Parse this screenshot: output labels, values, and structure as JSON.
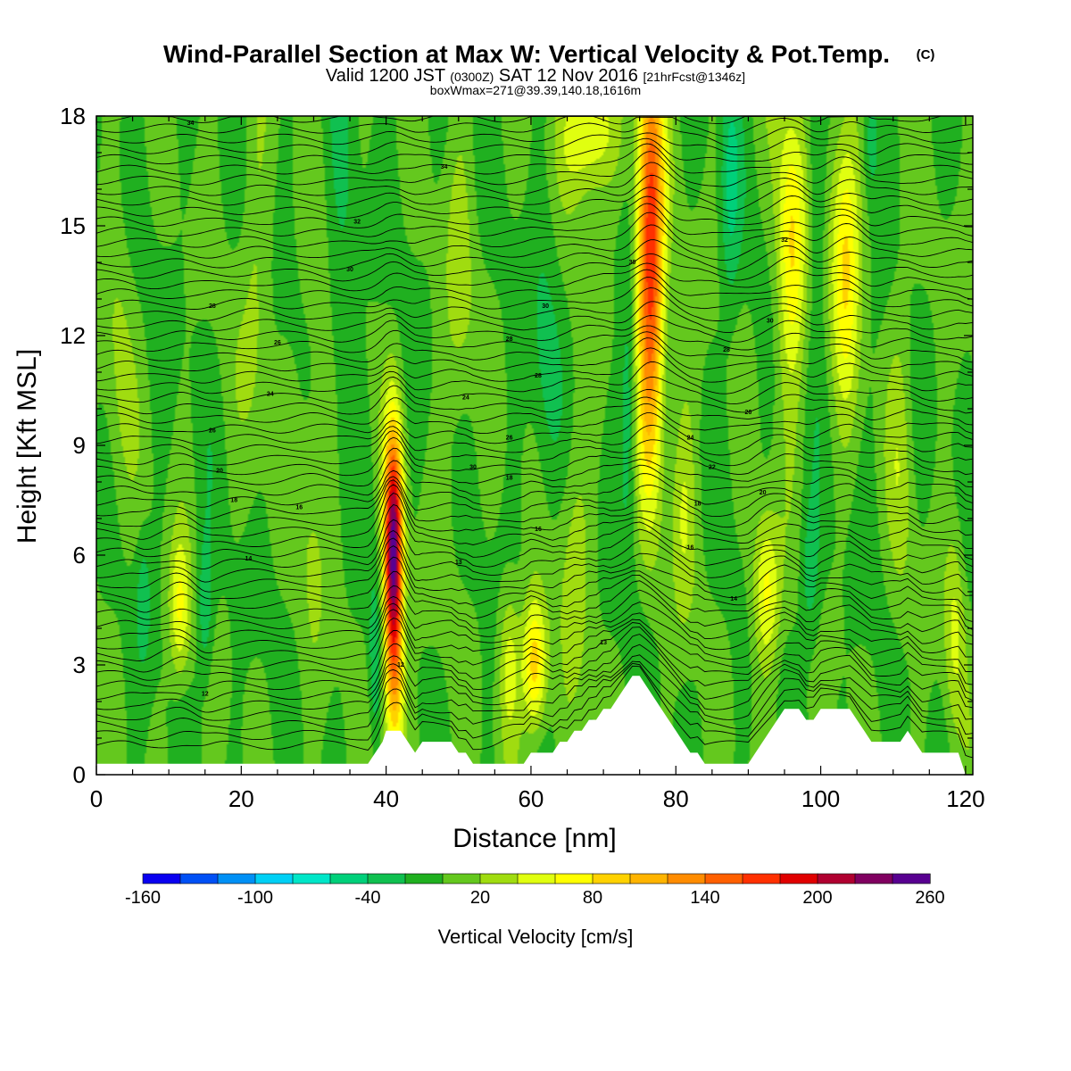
{
  "chart_data": {
    "type": "heatmap",
    "title": "Wind-Parallel Section at Max W: Vertical Velocity & Pot.Temp.",
    "title_suffix": "(C)",
    "subtitle": {
      "valid": "Valid 1200 JST",
      "utc": "(0300Z)",
      "date": "SAT 12 Nov 2016",
      "fcst": "[21hrFcst@1346z]"
    },
    "box_note": "boxWmax=271@39.39,140.18,1616m",
    "xlabel": "Distance [nm]",
    "ylabel": "Height [Kft MSL]",
    "xlim": [
      0,
      121
    ],
    "ylim": [
      0,
      18
    ],
    "x_ticks": [
      0,
      20,
      40,
      60,
      80,
      100,
      120
    ],
    "y_ticks": [
      0,
      3,
      6,
      9,
      12,
      15,
      18
    ],
    "colorbar": {
      "label": "Vertical Velocity [cm/s]",
      "min": -160,
      "max": 260,
      "step": 20,
      "tick_labels": [
        "-160",
        "-100",
        "-40",
        "20",
        "80",
        "140",
        "200",
        "260"
      ],
      "colors": [
        "#0a00f0",
        "#0050f5",
        "#0090f5",
        "#00d0f5",
        "#00e6c8",
        "#00d07a",
        "#10c050",
        "#20b020",
        "#64c81e",
        "#a0dc10",
        "#e0ff10",
        "#ffff00",
        "#ffd200",
        "#ffb400",
        "#ff8c00",
        "#ff6000",
        "#ff3000",
        "#e00000",
        "#b00030",
        "#800060",
        "#580090"
      ]
    },
    "background_velocity_cms": 0,
    "velocity_features": [
      {
        "x": 41,
        "z": 6.0,
        "peak": 250,
        "half_width_nm": 0.9,
        "half_height_kft": 2.3
      },
      {
        "x": 41.2,
        "z": 2.2,
        "peak": 70,
        "half_width_nm": 1.0,
        "half_height_kft": 1.5
      },
      {
        "x": 60.5,
        "z": 3.0,
        "peak": 100,
        "half_width_nm": 1.2,
        "half_height_kft": 1.3
      },
      {
        "x": 57,
        "z": 3.0,
        "peak": 50,
        "half_width_nm": 1.0,
        "half_height_kft": 1.5
      },
      {
        "x": 11.5,
        "z": 4.5,
        "peak": 60,
        "half_width_nm": 1.0,
        "half_height_kft": 1.4
      },
      {
        "x": 15,
        "z": 4.5,
        "peak": -40,
        "half_width_nm": 0.8,
        "half_height_kft": 1.5
      },
      {
        "x": 6.5,
        "z": 4.8,
        "peak": -30,
        "half_width_nm": 0.7,
        "half_height_kft": 1.2
      },
      {
        "x": 38.5,
        "z": 3.0,
        "peak": -40,
        "half_width_nm": 0.6,
        "half_height_kft": 1.5
      },
      {
        "x": 76.5,
        "z": 15.5,
        "peak": 150,
        "half_width_nm": 1.3,
        "half_height_kft": 3.2
      },
      {
        "x": 76.5,
        "z": 11.0,
        "peak": 80,
        "half_width_nm": 1.3,
        "half_height_kft": 3.0
      },
      {
        "x": 68,
        "z": 17.5,
        "peak": 70,
        "half_width_nm": 2.5,
        "half_height_kft": 1.2
      },
      {
        "x": 73.5,
        "z": 10.0,
        "peak": -40,
        "half_width_nm": 0.8,
        "half_height_kft": 2.5
      },
      {
        "x": 87.5,
        "z": 16.0,
        "peak": -40,
        "half_width_nm": 1.0,
        "half_height_kft": 2.5
      },
      {
        "x": 96,
        "z": 14.5,
        "peak": 85,
        "half_width_nm": 1.4,
        "half_height_kft": 2.8
      },
      {
        "x": 103.5,
        "z": 14.5,
        "peak": 85,
        "half_width_nm": 1.4,
        "half_height_kft": 2.8
      },
      {
        "x": 99.5,
        "z": 16.0,
        "peak": -35,
        "half_width_nm": 0.9,
        "half_height_kft": 2.5
      },
      {
        "x": 107,
        "z": 17.5,
        "peak": -40,
        "half_width_nm": 0.8,
        "half_height_kft": 1.2
      },
      {
        "x": 92.5,
        "z": 5.0,
        "peak": 70,
        "half_width_nm": 1.3,
        "half_height_kft": 1.5
      },
      {
        "x": 98.5,
        "z": 5.5,
        "peak": -35,
        "half_width_nm": 1.0,
        "half_height_kft": 1.5
      },
      {
        "x": 118.5,
        "z": 4.0,
        "peak": 40,
        "half_width_nm": 1.0,
        "half_height_kft": 2.0
      },
      {
        "x": 81,
        "z": 7.5,
        "peak": 35,
        "half_width_nm": 1.2,
        "half_height_kft": 2.5
      },
      {
        "x": 22,
        "z": 13.0,
        "peak": 25,
        "half_width_nm": 1.5,
        "half_height_kft": 3.5
      },
      {
        "x": 30,
        "z": 8.0,
        "peak": 25,
        "half_width_nm": 1.5,
        "half_height_kft": 3.5
      },
      {
        "x": 50,
        "z": 13.0,
        "peak": 25,
        "half_width_nm": 1.5,
        "half_height_kft": 3.5
      },
      {
        "x": 66,
        "z": 6.0,
        "peak": 30,
        "half_width_nm": 1.5,
        "half_height_kft": 3.0
      },
      {
        "x": 111,
        "z": 9.0,
        "peak": 25,
        "half_width_nm": 1.3,
        "half_height_kft": 3.5
      },
      {
        "x": 3,
        "z": 11.0,
        "peak": 20,
        "half_width_nm": 1.5,
        "half_height_kft": 3.5
      },
      {
        "x": 34,
        "z": 14.0,
        "peak": -20,
        "half_width_nm": 1.5,
        "half_height_kft": 3.5
      },
      {
        "x": 62,
        "z": 11.0,
        "peak": -25,
        "half_width_nm": 1.5,
        "half_height_kft": 3.0
      }
    ],
    "terrain_profile": {
      "x": [
        0,
        5,
        10,
        15,
        20,
        25,
        30,
        35,
        37.5,
        38.5,
        39.5,
        40,
        41,
        42,
        43,
        44,
        45,
        46,
        47,
        48,
        49,
        50,
        51,
        52,
        53,
        54,
        55,
        56,
        57,
        58,
        59,
        60,
        61,
        62,
        63,
        64,
        65,
        66,
        67,
        68,
        69,
        70,
        71,
        72,
        73,
        74,
        75,
        76,
        77,
        78,
        79,
        80,
        81,
        82,
        83,
        84,
        85,
        86,
        87,
        88,
        89,
        90,
        91,
        92,
        93,
        94,
        95,
        96,
        97,
        98,
        99,
        100,
        101,
        102,
        103,
        104,
        105,
        106,
        107,
        108,
        109,
        110,
        111,
        112,
        113,
        114,
        115,
        116,
        117,
        118,
        119,
        120,
        121
      ],
      "height_kft": [
        0.3,
        0.3,
        0.3,
        0.3,
        0.3,
        0.3,
        0.3,
        0.3,
        0.3,
        0.6,
        0.9,
        1.2,
        1.2,
        1.2,
        0.9,
        0.6,
        0.9,
        0.9,
        0.9,
        0.9,
        0.9,
        0.6,
        0.6,
        0.3,
        0.3,
        0.3,
        0.3,
        0.3,
        0.3,
        0.3,
        0.3,
        0.6,
        0.6,
        0.6,
        0.6,
        0.9,
        0.9,
        1.2,
        1.2,
        1.5,
        1.5,
        1.8,
        1.8,
        2.1,
        2.4,
        2.7,
        2.7,
        2.4,
        2.1,
        1.8,
        1.5,
        1.2,
        0.9,
        0.6,
        0.6,
        0.3,
        0.3,
        0.3,
        0.3,
        0.3,
        0.3,
        0.3,
        0.6,
        0.9,
        1.2,
        1.5,
        1.8,
        1.8,
        1.8,
        1.5,
        1.5,
        1.8,
        1.8,
        1.8,
        1.8,
        1.8,
        1.5,
        1.2,
        0.9,
        0.9,
        0.9,
        0.9,
        0.9,
        1.2,
        0.9,
        0.6,
        0.6,
        0.6,
        0.6,
        0.6,
        0.6,
        0.0,
        0.0
      ]
    },
    "contour_variable": "potential temperature (C)",
    "contour_spacing_c": 1,
    "contour_labels": [
      {
        "text": "34",
        "x": 13,
        "z": 17.8
      },
      {
        "text": "34",
        "x": 48,
        "z": 16.6
      },
      {
        "text": "32",
        "x": 36,
        "z": 15.1
      },
      {
        "text": "30",
        "x": 35,
        "z": 13.8
      },
      {
        "text": "28",
        "x": 16,
        "z": 12.8
      },
      {
        "text": "26",
        "x": 25,
        "z": 11.8
      },
      {
        "text": "24",
        "x": 24,
        "z": 10.4
      },
      {
        "text": "26",
        "x": 16,
        "z": 9.4
      },
      {
        "text": "20",
        "x": 17,
        "z": 8.3
      },
      {
        "text": "18",
        "x": 19,
        "z": 7.5
      },
      {
        "text": "16",
        "x": 28,
        "z": 7.3
      },
      {
        "text": "14",
        "x": 21,
        "z": 5.9
      },
      {
        "text": "12",
        "x": 15,
        "z": 2.2
      },
      {
        "text": "12",
        "x": 42,
        "z": 3.0
      },
      {
        "text": "13",
        "x": 50,
        "z": 5.8
      },
      {
        "text": "13",
        "x": 70,
        "z": 3.6
      },
      {
        "text": "16",
        "x": 61,
        "z": 6.7
      },
      {
        "text": "18",
        "x": 57,
        "z": 8.1
      },
      {
        "text": "30",
        "x": 52,
        "z": 8.4
      },
      {
        "text": "26",
        "x": 57,
        "z": 9.2
      },
      {
        "text": "24",
        "x": 51,
        "z": 10.3
      },
      {
        "text": "28",
        "x": 61,
        "z": 10.9
      },
      {
        "text": "28",
        "x": 57,
        "z": 11.9
      },
      {
        "text": "30",
        "x": 62,
        "z": 12.8
      },
      {
        "text": "30",
        "x": 74,
        "z": 14.0
      },
      {
        "text": "28",
        "x": 87,
        "z": 11.6
      },
      {
        "text": "30",
        "x": 93,
        "z": 12.4
      },
      {
        "text": "32",
        "x": 95,
        "z": 14.6
      },
      {
        "text": "26",
        "x": 90,
        "z": 9.9
      },
      {
        "text": "24",
        "x": 82,
        "z": 9.2
      },
      {
        "text": "22",
        "x": 85,
        "z": 8.4
      },
      {
        "text": "20",
        "x": 92,
        "z": 7.7
      },
      {
        "text": "18",
        "x": 83,
        "z": 7.4
      },
      {
        "text": "16",
        "x": 82,
        "z": 6.2
      },
      {
        "text": "14",
        "x": 88,
        "z": 4.8
      }
    ]
  }
}
